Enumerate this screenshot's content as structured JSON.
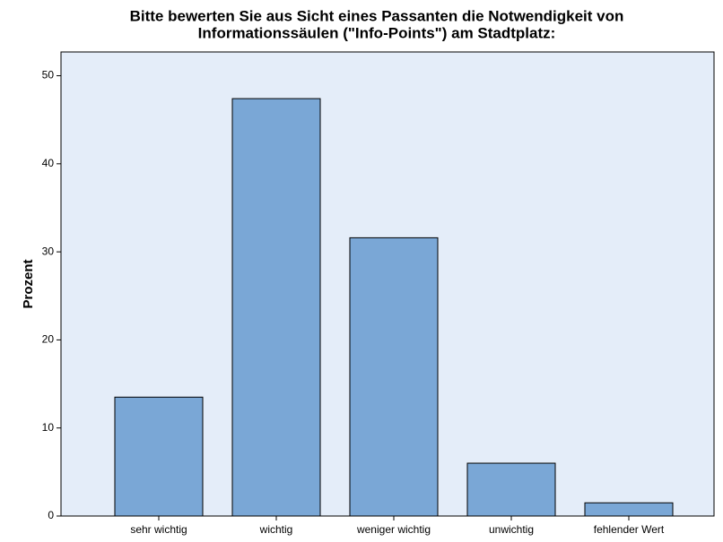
{
  "chart_data": {
    "type": "bar",
    "title": [
      "Bitte bewerten Sie aus Sicht eines Passanten die Notwendigkeit von",
      "Informationssäulen (\"Info-Points\") am Stadtplatz:"
    ],
    "y_label": "Prozent",
    "categories": [
      "sehr wichtig",
      "wichtig",
      "weniger wichtig",
      "unwichtig",
      "fehlender Wert"
    ],
    "values": [
      13.5,
      47.4,
      31.6,
      6.0,
      1.5
    ],
    "color": "#7aa7d6",
    "ylim": [
      0,
      52.7
    ],
    "yticks": [
      0,
      10,
      20,
      30,
      40,
      50
    ],
    "grid": false
  }
}
